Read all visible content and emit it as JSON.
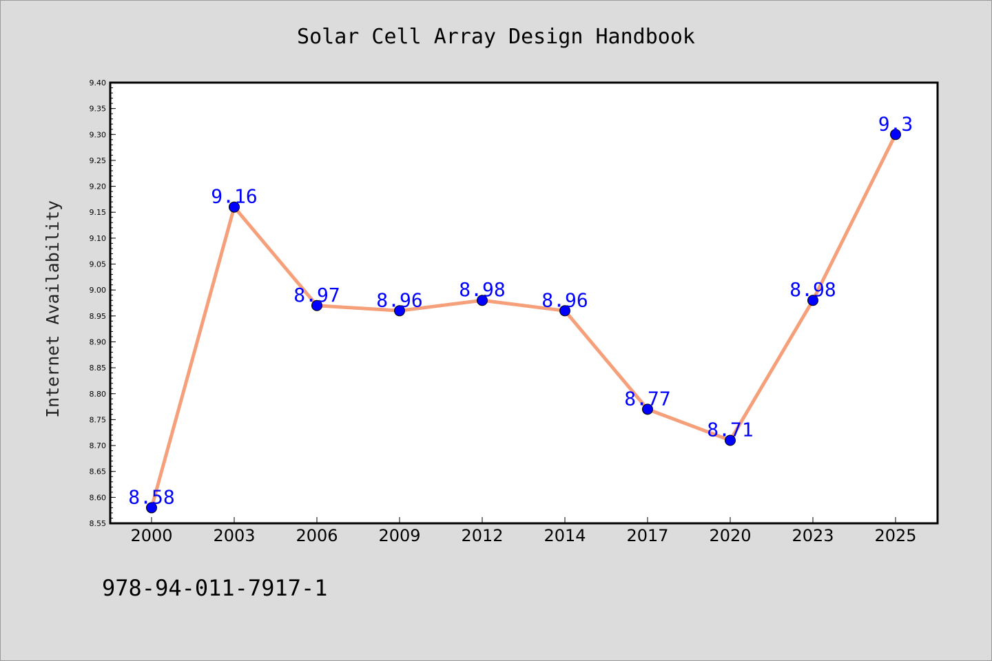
{
  "chart_data": {
    "type": "line",
    "title": "Solar Cell Array Design Handbook",
    "xlabel": "",
    "ylabel": "Internet Availability",
    "categories": [
      "2000",
      "2003",
      "2006",
      "2009",
      "2012",
      "2014",
      "2017",
      "2020",
      "2023",
      "2025"
    ],
    "series": [
      {
        "values": [
          8.58,
          9.16,
          8.97,
          8.96,
          8.98,
          8.96,
          8.77,
          8.71,
          8.98,
          9.3
        ],
        "labels": [
          "8.58",
          "9.16",
          "8.97",
          "8.96",
          "8.98",
          "8.96",
          "8.77",
          "8.71",
          "8.98",
          "9.3"
        ],
        "line_color": "#f5a07a",
        "marker_color": "#0000ff"
      }
    ],
    "ylim": [
      8.55,
      9.4
    ],
    "yticks": [
      "8.55",
      "8.60",
      "8.65",
      "8.70",
      "8.75",
      "8.80",
      "8.85",
      "8.90",
      "8.95",
      "9.00",
      "9.05",
      "9.10",
      "9.15",
      "9.20",
      "9.25",
      "9.30",
      "9.35",
      "9.40"
    ],
    "grid": false,
    "legend": "none"
  },
  "footer": {
    "isbn": "978-94-011-7917-1"
  },
  "colors": {
    "background": "#dcdcdc",
    "plot_background": "#ffffff",
    "line": "#f5a07a",
    "marker": "#0000ff",
    "data_label": "#0000ff"
  }
}
